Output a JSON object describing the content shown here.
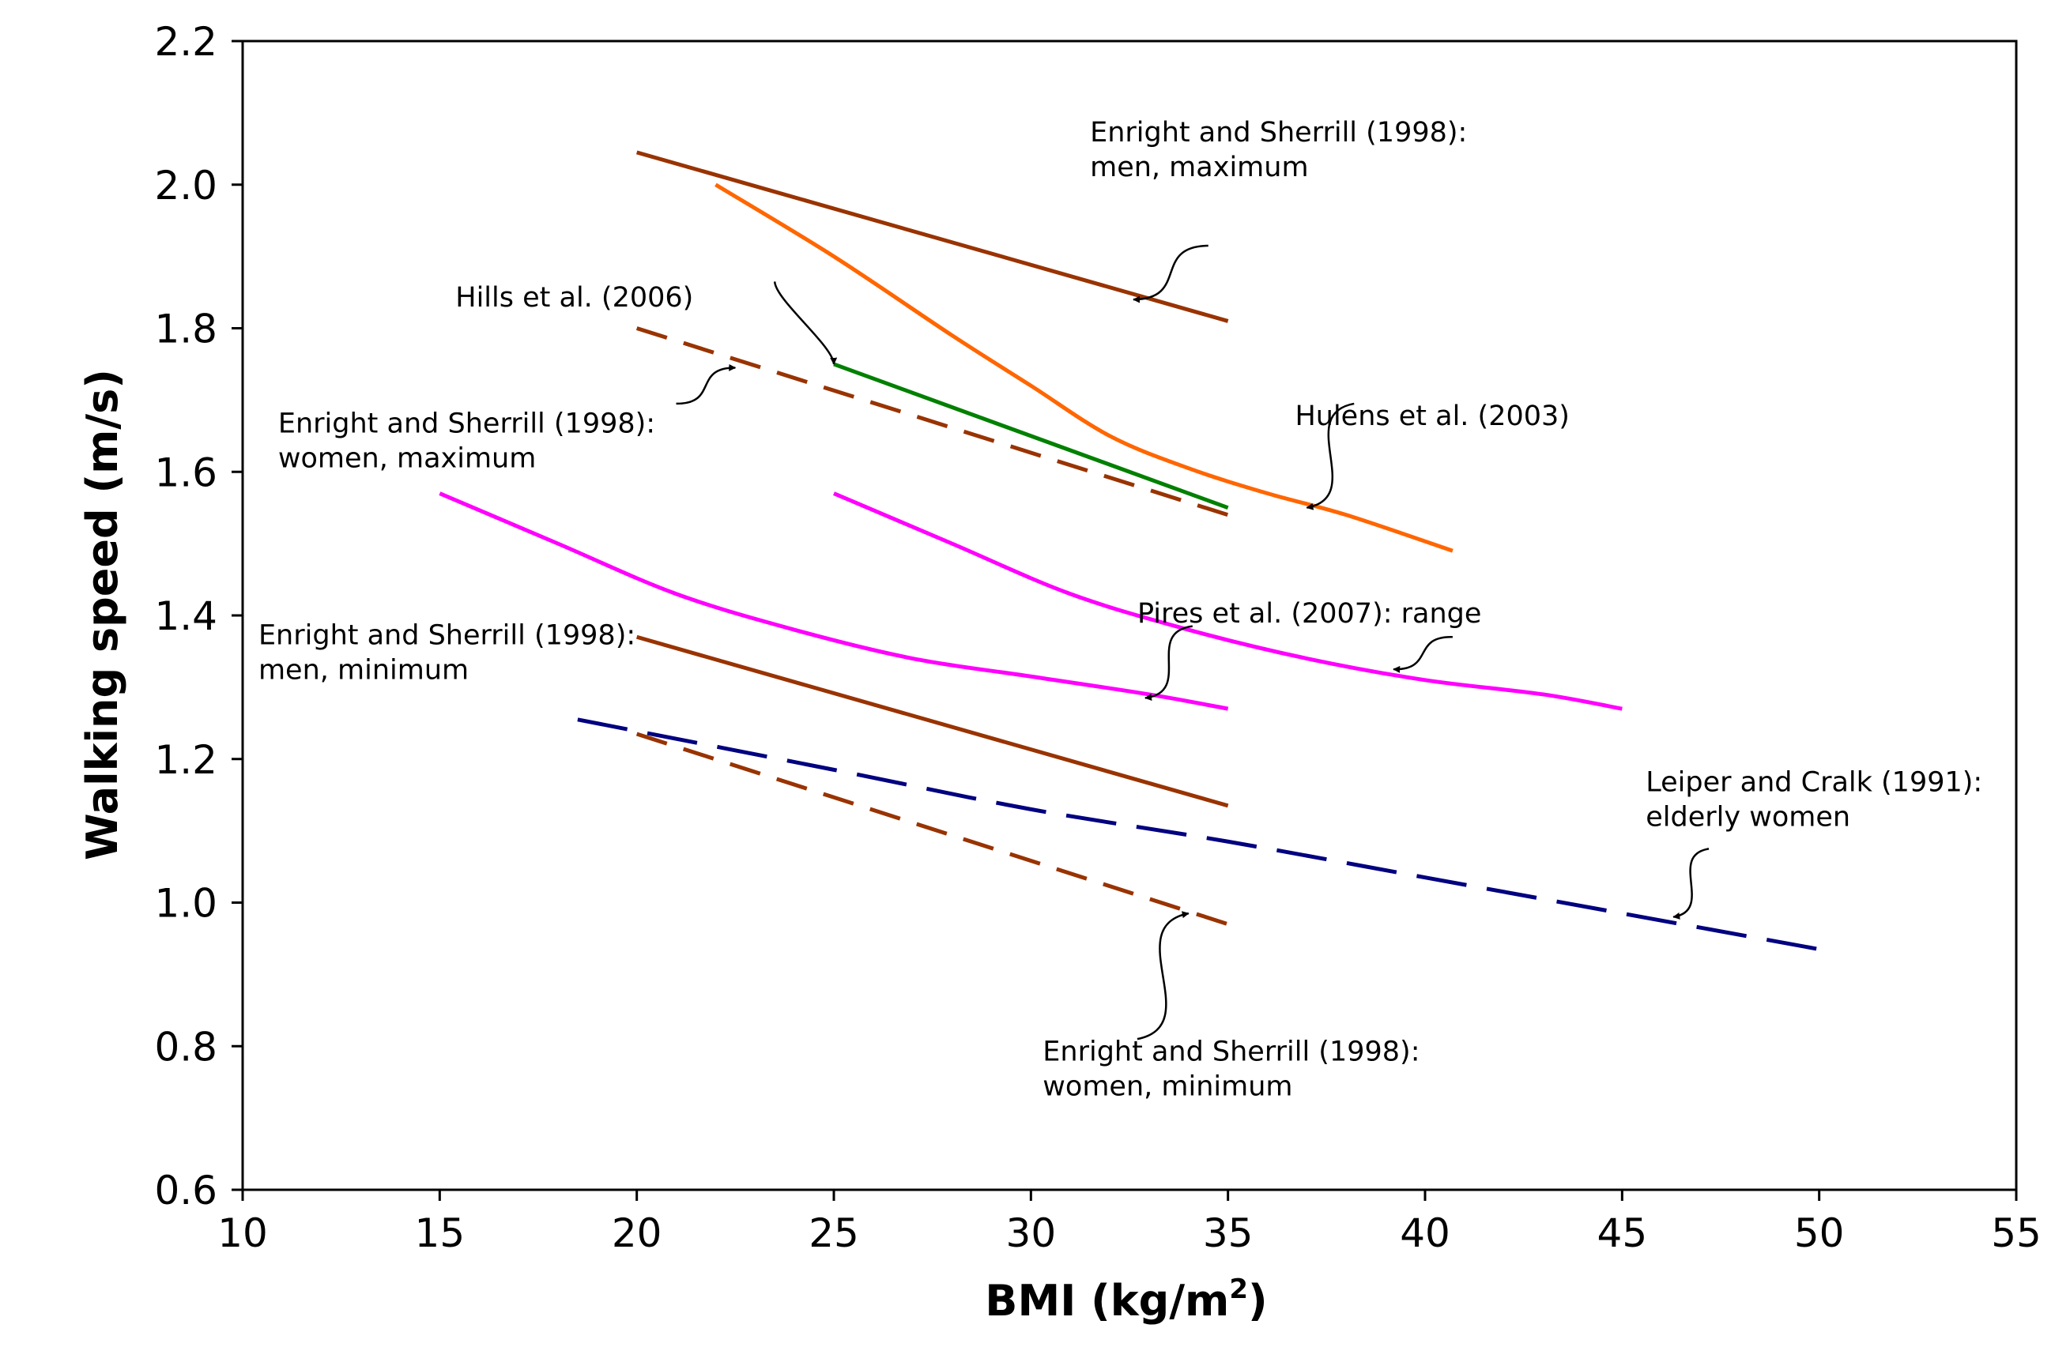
{
  "chart_data": {
    "type": "line",
    "title": "",
    "xlabel": "BMI (kg/m",
    "xlabel_superscript": "2",
    "xlabel_suffix": ")",
    "ylabel": "Walking speed (m/s)",
    "xlim": [
      10,
      55
    ],
    "ylim": [
      0.6,
      2.2
    ],
    "x_ticks": [
      10,
      15,
      20,
      25,
      30,
      35,
      40,
      45,
      50,
      55
    ],
    "y_ticks": [
      0.6,
      0.8,
      1.0,
      1.2,
      1.4,
      1.6,
      1.8,
      2.0,
      2.2
    ],
    "x_tick_labels": [
      "10",
      "15",
      "20",
      "25",
      "30",
      "35",
      "40",
      "45",
      "50",
      "55"
    ],
    "y_tick_labels": [
      "0.6",
      "0.8",
      "1.0",
      "1.2",
      "1.4",
      "1.6",
      "1.8",
      "2.0",
      "2.2"
    ],
    "grid": false,
    "legend": "none",
    "series": [
      {
        "id": "es-men-max",
        "color": "#993300",
        "style": "solid",
        "points": [
          [
            20,
            2.045
          ],
          [
            35,
            1.81
          ]
        ]
      },
      {
        "id": "es-women-max",
        "color": "#993300",
        "style": "dashed",
        "points": [
          [
            20,
            1.8
          ],
          [
            35,
            1.54
          ]
        ]
      },
      {
        "id": "es-men-min",
        "color": "#993300",
        "style": "solid",
        "points": [
          [
            20,
            1.37
          ],
          [
            35,
            1.135
          ]
        ]
      },
      {
        "id": "es-women-min",
        "color": "#993300",
        "style": "dashed",
        "points": [
          [
            20,
            1.235
          ],
          [
            35,
            0.97
          ]
        ]
      },
      {
        "id": "hulens",
        "color": "#ff6600",
        "style": "solid",
        "points": [
          [
            22,
            2.0
          ],
          [
            25,
            1.9
          ],
          [
            28,
            1.79
          ],
          [
            30,
            1.72
          ],
          [
            32,
            1.65
          ],
          [
            34,
            1.605
          ],
          [
            36,
            1.57
          ],
          [
            38,
            1.54
          ],
          [
            40.7,
            1.49
          ]
        ]
      },
      {
        "id": "hills",
        "color": "#008000",
        "style": "solid",
        "points": [
          [
            25,
            1.75
          ],
          [
            35,
            1.55
          ]
        ]
      },
      {
        "id": "pires-low",
        "color": "#ff00ff",
        "style": "solid",
        "points": [
          [
            15,
            1.57
          ],
          [
            18,
            1.5
          ],
          [
            21,
            1.43
          ],
          [
            24,
            1.38
          ],
          [
            27,
            1.34
          ],
          [
            30,
            1.315
          ],
          [
            33,
            1.29
          ],
          [
            35,
            1.27
          ]
        ]
      },
      {
        "id": "pires-high",
        "color": "#ff00ff",
        "style": "solid",
        "points": [
          [
            25,
            1.57
          ],
          [
            28,
            1.5
          ],
          [
            31,
            1.43
          ],
          [
            34,
            1.38
          ],
          [
            37,
            1.34
          ],
          [
            40,
            1.31
          ],
          [
            43,
            1.29
          ],
          [
            45,
            1.27
          ]
        ]
      },
      {
        "id": "leiper",
        "color": "#000080",
        "style": "longdash",
        "points": [
          [
            18.5,
            1.255
          ],
          [
            25,
            1.185
          ],
          [
            30,
            1.13
          ],
          [
            35,
            1.085
          ],
          [
            40,
            1.035
          ],
          [
            45,
            0.985
          ],
          [
            50,
            0.935
          ]
        ]
      }
    ],
    "annotations": [
      {
        "id": "ann-es-men-max",
        "lines": [
          "Enright and Sherrill (1998):",
          "men, maximum"
        ],
        "text_pos": [
          31.5,
          2.06
        ],
        "arrow_from": [
          34.5,
          1.915
        ],
        "arrow_to": [
          32.6,
          1.84
        ]
      },
      {
        "id": "ann-hills",
        "lines": [
          "Hills et al. (2006)"
        ],
        "text_pos": [
          15.4,
          1.83
        ],
        "arrow_from": [
          23.5,
          1.865
        ],
        "arrow_to": [
          25.0,
          1.75
        ]
      },
      {
        "id": "ann-es-women-max",
        "lines": [
          "Enright and Sherrill (1998):",
          "women, maximum"
        ],
        "text_pos": [
          10.9,
          1.655
        ],
        "arrow_from": [
          21.0,
          1.695
        ],
        "arrow_to": [
          22.5,
          1.745
        ]
      },
      {
        "id": "ann-hulens",
        "lines": [
          "Hulens et al. (2003)"
        ],
        "text_pos": [
          36.7,
          1.665
        ],
        "arrow_from": [
          38.2,
          1.695
        ],
        "arrow_to": [
          37.0,
          1.55
        ]
      },
      {
        "id": "ann-pires",
        "lines": [
          "Pires et al. (2007): range"
        ],
        "text_pos": [
          32.7,
          1.39
        ],
        "arrow_from": [
          34.1,
          1.385
        ],
        "arrow_to": [
          32.9,
          1.285
        ]
      },
      {
        "id": "ann-pires-2",
        "lines": [],
        "arrow_from": [
          40.7,
          1.37
        ],
        "arrow_to": [
          39.2,
          1.325
        ]
      },
      {
        "id": "ann-es-men-min",
        "lines": [
          "Enright and Sherrill (1998):",
          "men, minimum"
        ],
        "text_pos": [
          10.4,
          1.36
        ],
        "arrow_from": null,
        "arrow_to": null
      },
      {
        "id": "ann-leiper",
        "lines": [
          "Leiper and Cralk (1991):",
          "elderly women"
        ],
        "text_pos": [
          45.6,
          1.155
        ],
        "arrow_from": [
          47.2,
          1.075
        ],
        "arrow_to": [
          46.3,
          0.98
        ]
      },
      {
        "id": "ann-es-women-min",
        "lines": [
          "Enright and Sherrill (1998):",
          "women, minimum"
        ],
        "text_pos": [
          30.3,
          0.78
        ],
        "arrow_from": [
          32.7,
          0.81
        ],
        "arrow_to": [
          34.0,
          0.985
        ]
      }
    ]
  }
}
